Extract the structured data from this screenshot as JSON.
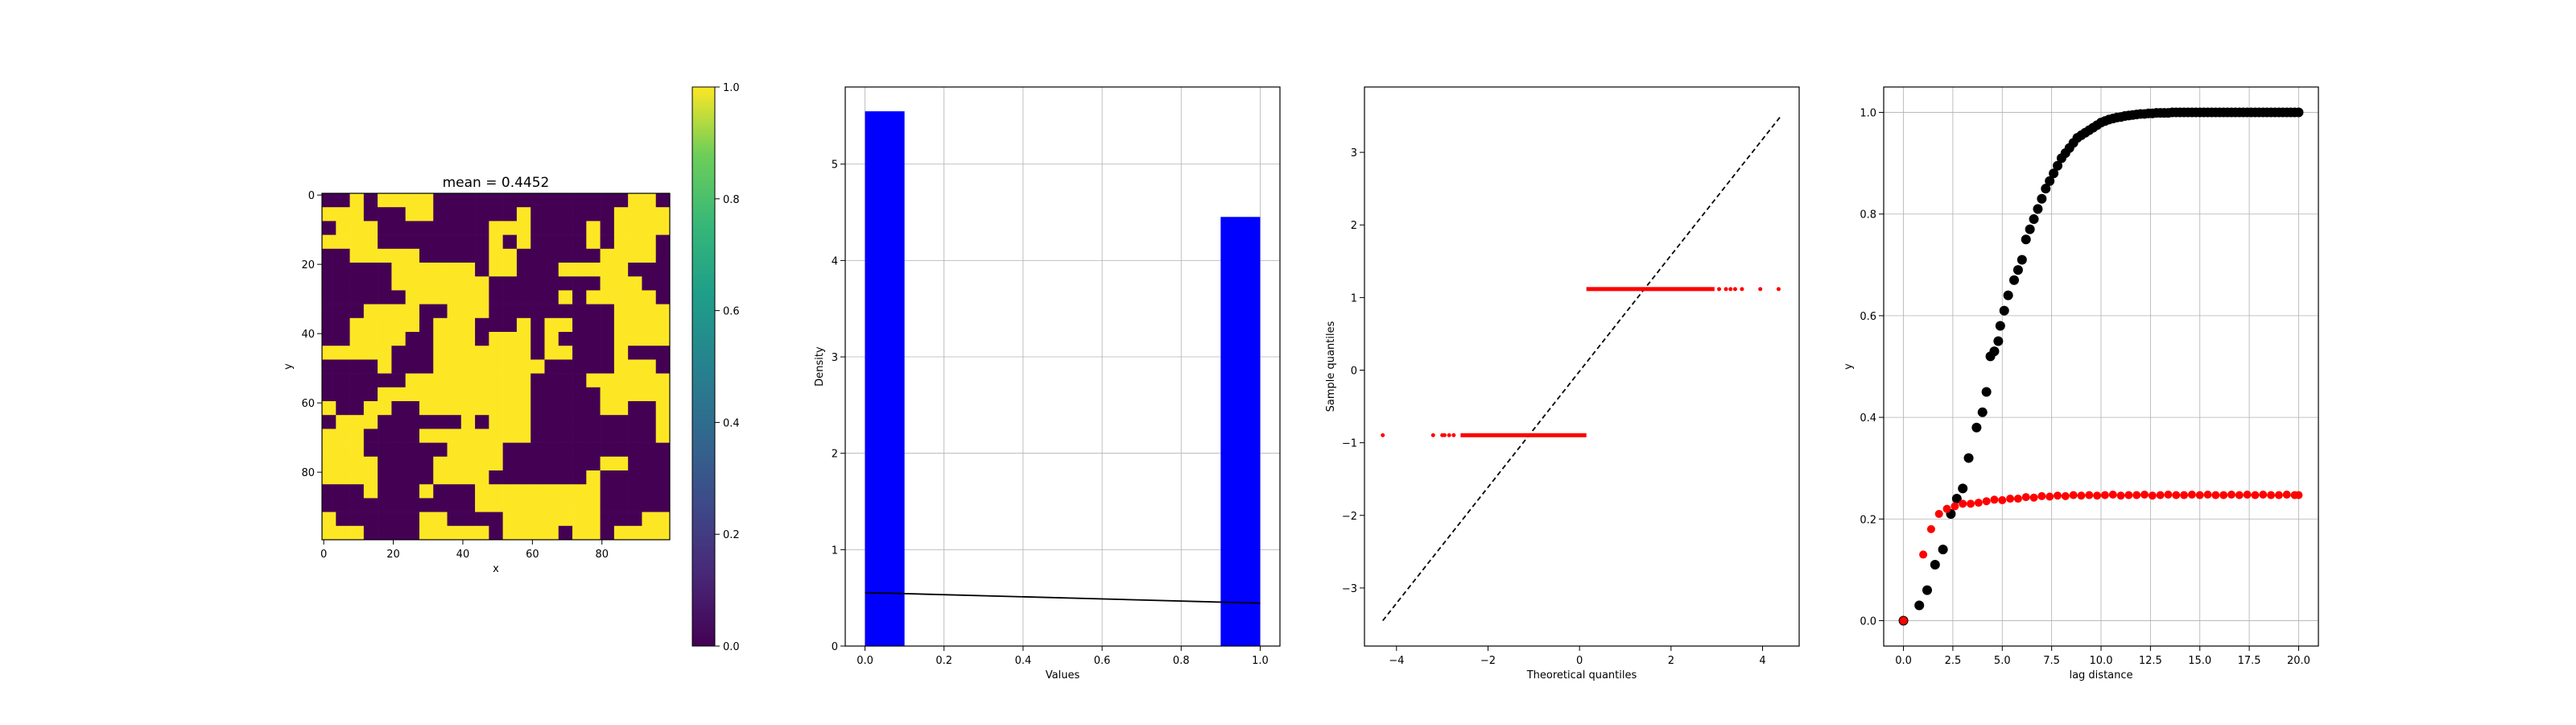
{
  "chart_data": [
    {
      "type": "heatmap",
      "title": "mean = 0.4452",
      "xlabel": "x",
      "ylabel": "y",
      "grid_size": 100,
      "xlim": [
        0,
        100
      ],
      "ylim": [
        100,
        0
      ],
      "x_ticks": [
        0,
        20,
        40,
        60,
        80
      ],
      "y_ticks": [
        0,
        20,
        40,
        60,
        80
      ],
      "values_range": [
        0,
        1
      ],
      "binary_values": [
        0,
        1
      ],
      "mean": 0.4452,
      "colormap": "viridis",
      "colors": {
        "low": "#440154",
        "high": "#fde725"
      },
      "colorbar": {
        "ticks": [
          "0.0",
          "0.2",
          "0.4",
          "0.6",
          "0.8",
          "1.0"
        ],
        "range": [
          0,
          1
        ]
      }
    },
    {
      "type": "bar",
      "xlabel": "Values",
      "ylabel": "Density",
      "xlim": [
        -0.05,
        1.05
      ],
      "ylim": [
        0,
        5.8
      ],
      "x_ticks": [
        "0.0",
        "0.2",
        "0.4",
        "0.6",
        "0.8",
        "1.0"
      ],
      "y_ticks": [
        "0",
        "1",
        "2",
        "3",
        "4",
        "5"
      ],
      "grid": true,
      "bars": [
        {
          "x0": 0.0,
          "x1": 0.1,
          "density": 5.548
        },
        {
          "x0": 0.9,
          "x1": 1.0,
          "density": 4.452
        }
      ],
      "bar_color": "#0000ff",
      "line": {
        "x": [
          0,
          1
        ],
        "y": [
          0.555,
          0.445
        ],
        "color": "#000000"
      }
    },
    {
      "type": "scatter",
      "xlabel": "Theoretical quantiles",
      "ylabel": "Sample quantiles",
      "xlim": [
        -4.7,
        4.8
      ],
      "ylim": [
        -3.8,
        3.9
      ],
      "x_ticks": [
        "−4",
        "−2",
        "0",
        "2",
        "4"
      ],
      "y_ticks": [
        "−3",
        "−2",
        "−1",
        "0",
        "1",
        "2",
        "3"
      ],
      "grid": false,
      "low_group": {
        "y": -0.896,
        "x_dense": [
          -2.6,
          0.15
        ],
        "x_sparse": [
          -4.3,
          -3.2,
          -3.0,
          -2.95,
          -2.85,
          -2.75
        ]
      },
      "high_group": {
        "y": 1.117,
        "x_dense": [
          0.15,
          2.95
        ],
        "x_sparse": [
          3.05,
          3.2,
          3.3,
          3.4,
          3.55,
          3.95,
          4.35
        ]
      },
      "reference_line": {
        "x": [
          -4.3,
          4.4
        ],
        "y": [
          -3.45,
          3.5
        ]
      },
      "point_color": "#ff0000",
      "line_color": "#000000"
    },
    {
      "type": "scatter",
      "xlabel": "lag distance",
      "ylabel": "y",
      "xlim": [
        -1,
        21
      ],
      "ylim": [
        -0.05,
        1.05
      ],
      "x_ticks": [
        "0.0",
        "2.5",
        "5.0",
        "7.5",
        "10.0",
        "12.5",
        "15.0",
        "17.5",
        "20.0"
      ],
      "y_ticks": [
        "0.0",
        "0.2",
        "0.4",
        "0.6",
        "0.8",
        "1.0"
      ],
      "grid": true,
      "series": [
        {
          "color": "#000000",
          "x": [
            0,
            0.8,
            1.2,
            1.6,
            2.0,
            2.4,
            2.7,
            3.0,
            3.3,
            3.7,
            4.0,
            4.2,
            4.4,
            4.6,
            4.8,
            4.9,
            5.1,
            5.3,
            5.6,
            5.8,
            6.0,
            6.2,
            6.4,
            6.6,
            6.8,
            7.0,
            7.2,
            7.4,
            7.6,
            7.8,
            8.0,
            8.2,
            8.4,
            8.6,
            8.8,
            9.0,
            9.2,
            9.4,
            9.6,
            9.8,
            10.0,
            10.2,
            10.4,
            10.6,
            10.8,
            11.0,
            11.2,
            11.4,
            11.6,
            11.8,
            12.0,
            12.2,
            12.4,
            12.6,
            12.8,
            13.0,
            13.2,
            13.4,
            13.6,
            13.8,
            14.0,
            14.2,
            14.4,
            14.6,
            14.8,
            15.0,
            15.2,
            15.4,
            15.6,
            15.8,
            16.0,
            16.2,
            16.4,
            16.6,
            16.8,
            17.0,
            17.2,
            17.4,
            17.6,
            17.8,
            18.0,
            18.2,
            18.4,
            18.6,
            18.8,
            19.0,
            19.2,
            19.4,
            19.6,
            19.8,
            20.0
          ],
          "y": [
            0,
            0.03,
            0.06,
            0.11,
            0.14,
            0.21,
            0.24,
            0.26,
            0.32,
            0.38,
            0.41,
            0.45,
            0.52,
            0.53,
            0.55,
            0.58,
            0.61,
            0.64,
            0.67,
            0.69,
            0.71,
            0.75,
            0.77,
            0.79,
            0.81,
            0.83,
            0.85,
            0.865,
            0.88,
            0.895,
            0.91,
            0.92,
            0.93,
            0.94,
            0.95,
            0.955,
            0.96,
            0.965,
            0.97,
            0.975,
            0.98,
            0.983,
            0.986,
            0.988,
            0.99,
            0.991,
            0.993,
            0.994,
            0.995,
            0.996,
            0.997,
            0.997,
            0.998,
            0.998,
            0.999,
            0.999,
            0.999,
            0.999,
            1.0,
            1.0,
            1.0,
            1.0,
            1.0,
            1.0,
            1.0,
            1.0,
            1.0,
            1.0,
            1.0,
            1.0,
            1.0,
            1.0,
            1.0,
            1.0,
            1.0,
            1.0,
            1.0,
            1.0,
            1.0,
            1.0,
            1.0,
            1.0,
            1.0,
            1.0,
            1.0,
            1.0,
            1.0,
            1.0,
            1.0,
            1.0,
            1.0
          ]
        },
        {
          "color": "#ff0000",
          "x": [
            0,
            1.0,
            1.4,
            1.8,
            2.2,
            2.6,
            3.0,
            3.4,
            3.8,
            4.2,
            4.6,
            5.0,
            5.4,
            5.8,
            6.2,
            6.6,
            7.0,
            7.4,
            7.8,
            8.2,
            8.6,
            9.0,
            9.4,
            9.8,
            10.2,
            10.6,
            11.0,
            11.4,
            11.8,
            12.2,
            12.6,
            13.0,
            13.4,
            13.8,
            14.2,
            14.6,
            15.0,
            15.4,
            15.8,
            16.2,
            16.6,
            17.0,
            17.4,
            17.8,
            18.2,
            18.6,
            19.0,
            19.4,
            19.8,
            20.0
          ],
          "y": [
            0,
            0.13,
            0.18,
            0.21,
            0.22,
            0.225,
            0.23,
            0.23,
            0.232,
            0.235,
            0.238,
            0.237,
            0.24,
            0.24,
            0.243,
            0.242,
            0.245,
            0.244,
            0.246,
            0.245,
            0.247,
            0.246,
            0.247,
            0.246,
            0.247,
            0.248,
            0.246,
            0.247,
            0.247,
            0.248,
            0.246,
            0.247,
            0.248,
            0.247,
            0.247,
            0.248,
            0.247,
            0.248,
            0.247,
            0.247,
            0.248,
            0.247,
            0.248,
            0.247,
            0.248,
            0.247,
            0.247,
            0.248,
            0.247,
            0.247
          ]
        }
      ]
    }
  ]
}
